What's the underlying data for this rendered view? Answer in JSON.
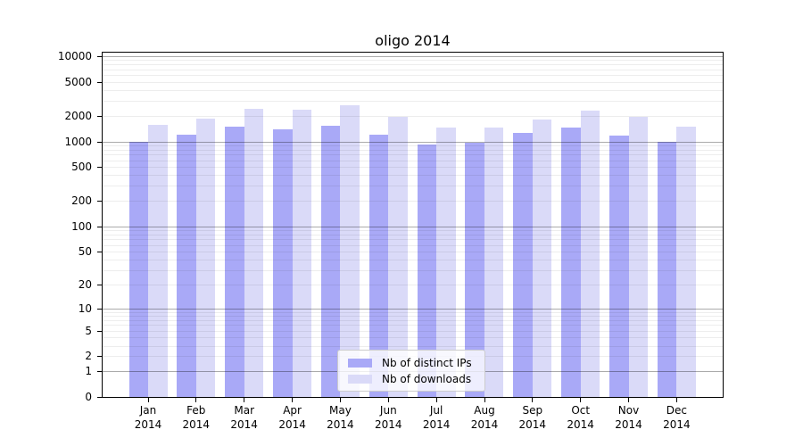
{
  "title": "oligo 2014",
  "colors": {
    "background": "#ffffff",
    "axis": "#000000",
    "grid_major": "#aaaaaa",
    "grid_minor": "#ededed",
    "legend_border": "#cccccc",
    "distinct_ips_bar": "#a9a9f7",
    "downloads_bar": "#dadaf8"
  },
  "chart_data": {
    "type": "bar",
    "title": "oligo 2014",
    "categories": [
      "Jan",
      "Feb",
      "Mar",
      "Apr",
      "May",
      "Jun",
      "Jul",
      "Aug",
      "Sep",
      "Oct",
      "Nov",
      "Dec"
    ],
    "category_year": "2014",
    "series": [
      {
        "name": "Nb of distinct IPs",
        "color": "#a9a9f7",
        "values": [
          985,
          1210,
          1495,
          1390,
          1530,
          1185,
          930,
          970,
          1255,
          1465,
          1165,
          985
        ]
      },
      {
        "name": "Nb of downloads",
        "color": "#dadaf8",
        "values": [
          1560,
          1870,
          2400,
          2345,
          2645,
          1960,
          1470,
          1450,
          1815,
          2310,
          1960,
          1495
        ]
      }
    ],
    "y_ticks": [
      0,
      1,
      2,
      5,
      10,
      20,
      50,
      100,
      200,
      500,
      1000,
      2000,
      5000,
      10000
    ],
    "y_scale": "log1p",
    "ylim": [
      0,
      10000
    ],
    "xlabel": "",
    "ylabel": "",
    "grid": true,
    "legend_position": "lower center"
  }
}
